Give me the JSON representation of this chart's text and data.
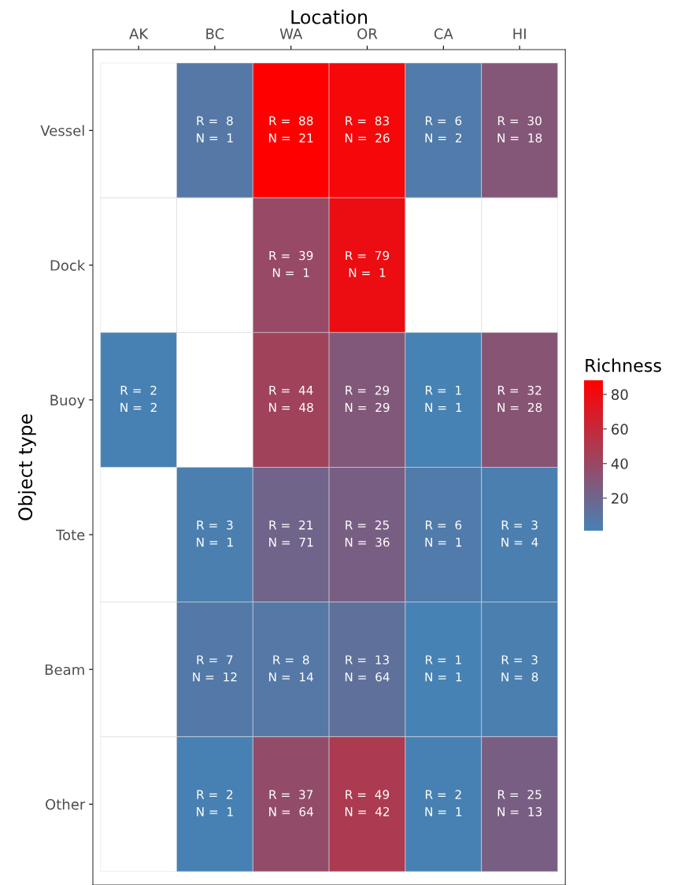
{
  "chart_data": {
    "type": "heatmap",
    "xlabel": "Location",
    "ylabel": "Object type",
    "clabel": "Richness",
    "categories": [
      "AK",
      "BC",
      "WA",
      "OR",
      "CA",
      "HI"
    ],
    "y_categories": [
      "Vessel",
      "Dock",
      "Buoy",
      "Tote",
      "Beam",
      "Other"
    ],
    "cells": [
      [
        null,
        8,
        88,
        83,
        6,
        30
      ],
      [
        null,
        null,
        39,
        79,
        null,
        null
      ],
      [
        2,
        null,
        44,
        29,
        1,
        32
      ],
      [
        null,
        3,
        21,
        25,
        6,
        3
      ],
      [
        null,
        7,
        8,
        13,
        1,
        3
      ],
      [
        null,
        2,
        37,
        49,
        2,
        25
      ]
    ],
    "cell_labels": [
      [
        null,
        "R =  8\nN =  1",
        "R =  88\nN =  21",
        "R =  83\nN =  26",
        "R =  6\nN =  2",
        "R =  30\nN =  18"
      ],
      [
        null,
        null,
        "R =  39\nN =  1",
        "R =  79\nN =  1",
        null,
        null
      ],
      [
        "R =  2\nN =  2",
        null,
        "R =  44\nN =  48",
        "R =  29\nN =  29",
        "R =  1\nN =  1",
        "R =  32\nN =  28"
      ],
      [
        null,
        "R =  3\nN =  1",
        "R =  21\nN =  71",
        "R =  25\nN =  36",
        "R =  6\nN =  1",
        "R =  3\nN =  4"
      ],
      [
        null,
        "R =  7\nN =  12",
        "R =  8\nN =  14",
        "R =  13\nN =  64",
        "R =  1\nN =  1",
        "R =  3\nN =  8"
      ],
      [
        null,
        "R =  2\nN =  1",
        "R =  37\nN =  64",
        "R =  49\nN =  42",
        "R =  2\nN =  1",
        "R =  25\nN =  13"
      ]
    ],
    "clim": [
      1,
      88
    ],
    "cticks": [
      20,
      40,
      60,
      80
    ],
    "colors": [
      "#4682b4",
      "#ff0000"
    ],
    "grid": false
  }
}
